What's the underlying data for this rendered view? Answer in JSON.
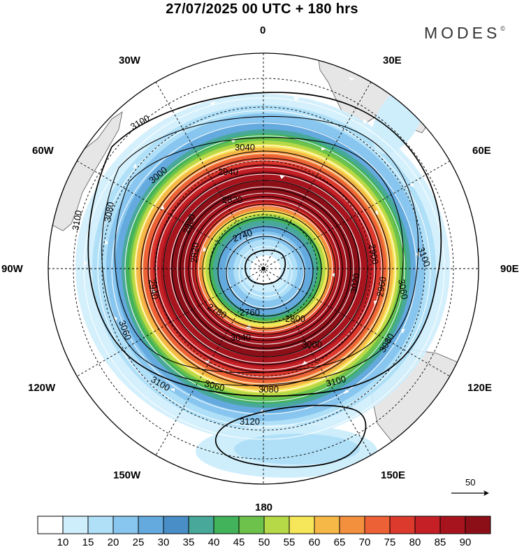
{
  "title": "27/07/2025  00 UTC  + 180 hrs",
  "brand": "MODES",
  "brand_mark": "©",
  "longitude_labels": {
    "n": "0",
    "ne": "30E",
    "e1": "60E",
    "e": "90E",
    "se1": "120E",
    "se": "150E",
    "s": "180",
    "sw": "150W",
    "w1": "120W",
    "w": "90W",
    "nw1": "60W",
    "nw": "30W"
  },
  "contour_labels": [
    "3100",
    "3080",
    "3060",
    "3040",
    "3000",
    "2940",
    "2880",
    "2820",
    "2760",
    "2740",
    "2780",
    "2800",
    "2900",
    "2960",
    "3020",
    "3120"
  ],
  "reference_vector": {
    "label": "50",
    "value": 50
  },
  "colorbar": {
    "ticks": [
      "10",
      "15",
      "20",
      "25",
      "30",
      "35",
      "40",
      "45",
      "50",
      "55",
      "60",
      "65",
      "70",
      "75",
      "80",
      "85",
      "90"
    ],
    "colors": [
      "#ffffff",
      "#cfeefc",
      "#b0e0f8",
      "#88c6ef",
      "#64aade",
      "#4a8ec8",
      "#48a89a",
      "#42b35a",
      "#6cc24a",
      "#b6d948",
      "#f6e65a",
      "#f6b847",
      "#f3903e",
      "#ec6236",
      "#dc3a2c",
      "#c42026",
      "#a8141e",
      "#8c0f18"
    ]
  },
  "colors": {
    "land": "#e8e8e8",
    "coast": "#555555",
    "contour": "#000000",
    "stream": "#ffffff"
  }
}
